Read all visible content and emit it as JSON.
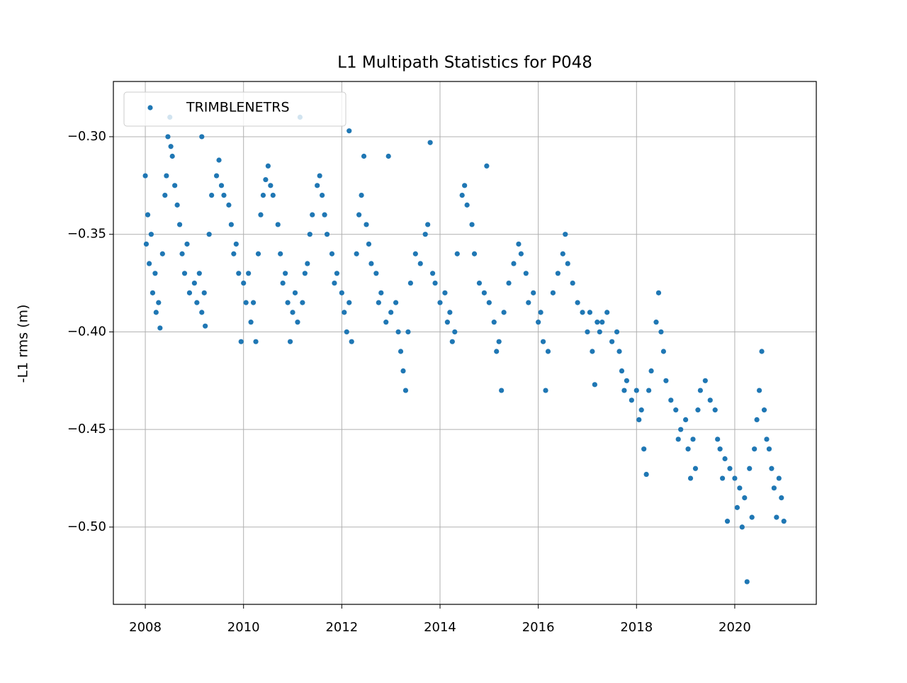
{
  "chart_data": {
    "type": "scatter",
    "title": "L1 Multipath Statistics for P048",
    "ylabel": "-L1 rms (m)",
    "xlim": [
      2007.35,
      2021.66
    ],
    "ylim": [
      -0.5396,
      -0.2717
    ],
    "xticks": [
      2008,
      2010,
      2012,
      2014,
      2016,
      2018,
      2020
    ],
    "yticks": [
      {
        "value": -0.5,
        "label": "−0.50"
      },
      {
        "value": -0.45,
        "label": "−0.45"
      },
      {
        "value": -0.4,
        "label": "−0.40"
      },
      {
        "value": -0.35,
        "label": "−0.35"
      },
      {
        "value": -0.3,
        "label": "−0.30"
      }
    ],
    "grid": true,
    "legend": "upper left",
    "x": [
      2008.0,
      2008.02,
      2008.05,
      2008.08,
      2008.12,
      2008.15,
      2008.2,
      2008.22,
      2008.27,
      2008.3,
      2008.35,
      2008.4,
      2008.43,
      2008.46,
      2008.5,
      2008.52,
      2008.55,
      2008.6,
      2008.65,
      2008.7,
      2008.75,
      2008.8,
      2008.85,
      2008.9,
      2009.0,
      2009.05,
      2009.1,
      2009.15,
      2009.2,
      2009.22,
      2009.15,
      2009.3,
      2009.35,
      2009.45,
      2009.5,
      2009.55,
      2009.6,
      2009.7,
      2009.75,
      2009.8,
      2009.85,
      2009.9,
      2009.95,
      2010.0,
      2010.05,
      2010.1,
      2010.15,
      2010.2,
      2010.25,
      2010.3,
      2010.35,
      2010.4,
      2010.45,
      2010.5,
      2010.55,
      2010.6,
      2010.7,
      2010.75,
      2010.8,
      2010.85,
      2010.9,
      2010.95,
      2011.0,
      2011.05,
      2011.1,
      2011.15,
      2011.2,
      2011.25,
      2011.3,
      2011.35,
      2011.4,
      2011.5,
      2011.55,
      2011.6,
      2011.65,
      2011.7,
      2011.8,
      2011.85,
      2011.9,
      2012.0,
      2012.05,
      2012.1,
      2012.15,
      2012.2,
      2012.15,
      2012.3,
      2012.35,
      2012.4,
      2012.45,
      2012.5,
      2012.55,
      2012.6,
      2012.7,
      2012.75,
      2012.8,
      2012.9,
      2012.95,
      2013.0,
      2013.1,
      2013.15,
      2013.2,
      2013.25,
      2013.3,
      2013.35,
      2013.4,
      2013.5,
      2013.6,
      2013.7,
      2013.75,
      2013.8,
      2013.85,
      2013.9,
      2014.0,
      2014.1,
      2014.15,
      2014.2,
      2014.25,
      2014.3,
      2014.35,
      2014.45,
      2014.5,
      2014.55,
      2014.65,
      2014.7,
      2014.8,
      2014.9,
      2014.95,
      2015.0,
      2015.1,
      2015.15,
      2015.2,
      2015.25,
      2015.3,
      2015.4,
      2015.5,
      2015.6,
      2015.65,
      2015.75,
      2015.8,
      2015.9,
      2016.0,
      2016.05,
      2016.1,
      2016.15,
      2016.2,
      2016.3,
      2016.4,
      2016.5,
      2016.55,
      2016.6,
      2016.7,
      2016.8,
      2016.9,
      2017.0,
      2017.05,
      2017.1,
      2017.15,
      2017.2,
      2017.25,
      2017.3,
      2017.4,
      2017.5,
      2017.6,
      2017.65,
      2017.7,
      2017.75,
      2017.8,
      2017.9,
      2018.0,
      2018.05,
      2018.1,
      2018.15,
      2018.2,
      2018.25,
      2018.3,
      2018.4,
      2018.45,
      2018.5,
      2018.55,
      2018.6,
      2018.7,
      2018.8,
      2018.85,
      2018.9,
      2019.0,
      2019.05,
      2019.1,
      2019.15,
      2019.2,
      2019.25,
      2019.3,
      2019.4,
      2019.5,
      2019.6,
      2019.65,
      2019.7,
      2019.75,
      2019.8,
      2019.85,
      2019.9,
      2020.0,
      2020.05,
      2020.1,
      2020.15,
      2020.2,
      2020.25,
      2020.3,
      2020.35,
      2020.4,
      2020.45,
      2020.5,
      2020.55,
      2020.6,
      2020.65,
      2020.7,
      2020.75,
      2020.8,
      2020.85,
      2020.9,
      2020.95,
      2021.0
    ],
    "series": [
      {
        "name": "TRIMBLENETRS",
        "color": "#1f77b4",
        "values": [
          -0.32,
          -0.355,
          -0.34,
          -0.365,
          -0.35,
          -0.38,
          -0.37,
          -0.39,
          -0.385,
          -0.398,
          -0.36,
          -0.33,
          -0.32,
          -0.3,
          -0.29,
          -0.305,
          -0.31,
          -0.325,
          -0.335,
          -0.345,
          -0.36,
          -0.37,
          -0.355,
          -0.38,
          -0.375,
          -0.385,
          -0.37,
          -0.39,
          -0.38,
          -0.397,
          -0.3,
          -0.35,
          -0.33,
          -0.32,
          -0.312,
          -0.325,
          -0.33,
          -0.335,
          -0.345,
          -0.36,
          -0.355,
          -0.37,
          -0.405,
          -0.375,
          -0.385,
          -0.37,
          -0.395,
          -0.385,
          -0.405,
          -0.36,
          -0.34,
          -0.33,
          -0.322,
          -0.315,
          -0.325,
          -0.33,
          -0.345,
          -0.36,
          -0.375,
          -0.37,
          -0.385,
          -0.405,
          -0.39,
          -0.38,
          -0.395,
          -0.29,
          -0.385,
          -0.37,
          -0.365,
          -0.35,
          -0.34,
          -0.325,
          -0.32,
          -0.33,
          -0.34,
          -0.35,
          -0.36,
          -0.375,
          -0.37,
          -0.38,
          -0.39,
          -0.4,
          -0.385,
          -0.405,
          -0.297,
          -0.36,
          -0.34,
          -0.33,
          -0.31,
          -0.345,
          -0.355,
          -0.365,
          -0.37,
          -0.385,
          -0.38,
          -0.395,
          -0.31,
          -0.39,
          -0.385,
          -0.4,
          -0.41,
          -0.42,
          -0.43,
          -0.4,
          -0.375,
          -0.36,
          -0.365,
          -0.35,
          -0.345,
          -0.303,
          -0.37,
          -0.375,
          -0.385,
          -0.38,
          -0.395,
          -0.39,
          -0.405,
          -0.4,
          -0.36,
          -0.33,
          -0.325,
          -0.335,
          -0.345,
          -0.36,
          -0.375,
          -0.38,
          -0.315,
          -0.385,
          -0.395,
          -0.41,
          -0.405,
          -0.43,
          -0.39,
          -0.375,
          -0.365,
          -0.355,
          -0.36,
          -0.37,
          -0.385,
          -0.38,
          -0.395,
          -0.39,
          -0.405,
          -0.43,
          -0.41,
          -0.38,
          -0.37,
          -0.36,
          -0.35,
          -0.365,
          -0.375,
          -0.385,
          -0.39,
          -0.4,
          -0.39,
          -0.41,
          -0.427,
          -0.395,
          -0.4,
          -0.395,
          -0.39,
          -0.405,
          -0.4,
          -0.41,
          -0.42,
          -0.43,
          -0.425,
          -0.435,
          -0.43,
          -0.445,
          -0.44,
          -0.46,
          -0.473,
          -0.43,
          -0.42,
          -0.395,
          -0.38,
          -0.4,
          -0.41,
          -0.425,
          -0.435,
          -0.44,
          -0.455,
          -0.45,
          -0.445,
          -0.46,
          -0.475,
          -0.455,
          -0.47,
          -0.44,
          -0.43,
          -0.425,
          -0.435,
          -0.44,
          -0.455,
          -0.46,
          -0.475,
          -0.465,
          -0.497,
          -0.47,
          -0.475,
          -0.49,
          -0.48,
          -0.5,
          -0.485,
          -0.528,
          -0.47,
          -0.495,
          -0.46,
          -0.445,
          -0.43,
          -0.41,
          -0.44,
          -0.455,
          -0.46,
          -0.47,
          -0.48,
          -0.495,
          -0.475,
          -0.485,
          -0.497
        ]
      }
    ]
  }
}
